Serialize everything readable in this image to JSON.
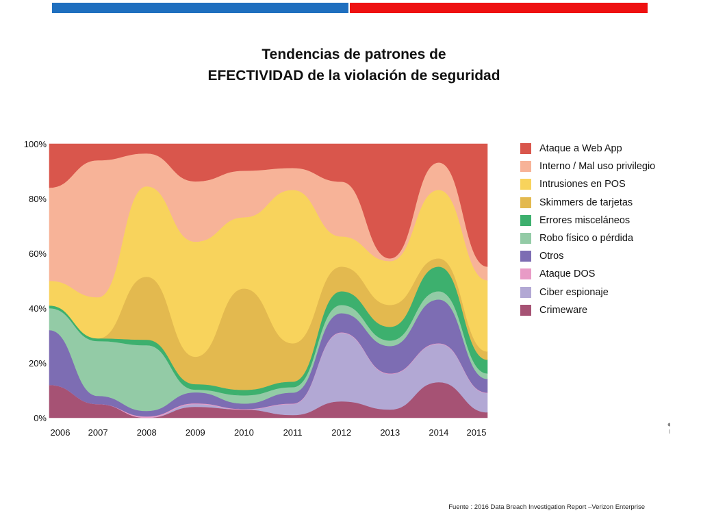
{
  "header": {
    "title_line1": "Tendencias de patrones de",
    "title_line2": "EFECTIVIDAD de la violación de seguridad",
    "bar_colors": [
      "#1f6fbf",
      "#ee1111"
    ]
  },
  "chart_data": {
    "type": "area",
    "stacking": "percent",
    "title": "Tendencias de patrones de EFECTIVIDAD de la violación de seguridad",
    "xlabel": "",
    "ylabel": "",
    "ylim": [
      0,
      100
    ],
    "x": [
      "2006",
      "2007",
      "2008",
      "2009",
      "2010",
      "2011",
      "2012",
      "2013",
      "2014",
      "2015"
    ],
    "y_ticks": [
      "0%",
      "20%",
      "40%",
      "60%",
      "80%",
      "100%"
    ],
    "series": [
      {
        "name": "Crimeware",
        "color": "#a65274",
        "values": [
          12,
          5,
          0,
          4,
          3,
          1,
          6,
          3,
          13,
          2
        ]
      },
      {
        "name": "Ciber espionaje",
        "color": "#b2a8d4",
        "values": [
          0,
          0,
          0,
          1,
          0,
          4,
          25,
          13,
          14,
          7
        ]
      },
      {
        "name": "Ataque DOS",
        "color": "#e89bc6",
        "values": [
          0,
          0,
          0.5,
          0.3,
          0.2,
          0.2,
          0.2,
          0.2,
          0.2,
          0.2
        ]
      },
      {
        "name": "Otros",
        "color": "#7d6db3",
        "values": [
          20,
          3,
          2,
          4,
          2,
          4,
          7,
          10,
          16,
          5
        ]
      },
      {
        "name": "Robo físico o pérdida",
        "color": "#93cba6",
        "values": [
          8,
          20,
          24,
          1,
          3,
          2,
          3,
          2,
          3,
          2
        ]
      },
      {
        "name": "Errores  misceláneos",
        "color": "#3db06e",
        "values": [
          1,
          1,
          2,
          2,
          2,
          2,
          5,
          5,
          9,
          5
        ]
      },
      {
        "name": "Skimmers de tarjetas",
        "color": "#e3b94f",
        "values": [
          0,
          0,
          23,
          10,
          37,
          14,
          9,
          8,
          3,
          3
        ]
      },
      {
        "name": "Intrusiones en POS",
        "color": "#f8d35c",
        "values": [
          9,
          15,
          33,
          42,
          26,
          56,
          11,
          16,
          25,
          26
        ]
      },
      {
        "name": "Interno / Mal uso privilegio",
        "color": "#f7b398",
        "values": [
          34,
          50,
          12,
          22,
          17,
          8,
          20,
          1,
          10,
          5
        ]
      },
      {
        "name": "Ataque a Web App",
        "color": "#d9564c",
        "values": [
          16,
          6,
          3.5,
          13.7,
          9.8,
          8.8,
          13.8,
          41.8,
          6.8,
          44.8
        ]
      }
    ]
  },
  "legend": {
    "items": [
      {
        "label": "Ataque a Web App",
        "color": "#d9564c"
      },
      {
        "label": "Interno / Mal uso privilegio",
        "color": "#f7b398"
      },
      {
        "label": "Intrusiones en POS",
        "color": "#f8d35c"
      },
      {
        "label": "Skimmers de tarjetas",
        "color": "#e3b94f"
      },
      {
        "label": "Errores  misceláneos",
        "color": "#3db06e"
      },
      {
        "label": "Robo físico o pérdida",
        "color": "#93cba6"
      },
      {
        "label": "Otros",
        "color": "#7d6db3"
      },
      {
        "label": "Ataque DOS",
        "color": "#e89bc6"
      },
      {
        "label": "Ciber espionaje",
        "color": "#b2a8d4"
      },
      {
        "label": "Crimeware",
        "color": "#a65274"
      }
    ]
  },
  "footer": {
    "source": "Fuente : 2016 Data Breach Investigation Report –Verizon Enterprise"
  }
}
